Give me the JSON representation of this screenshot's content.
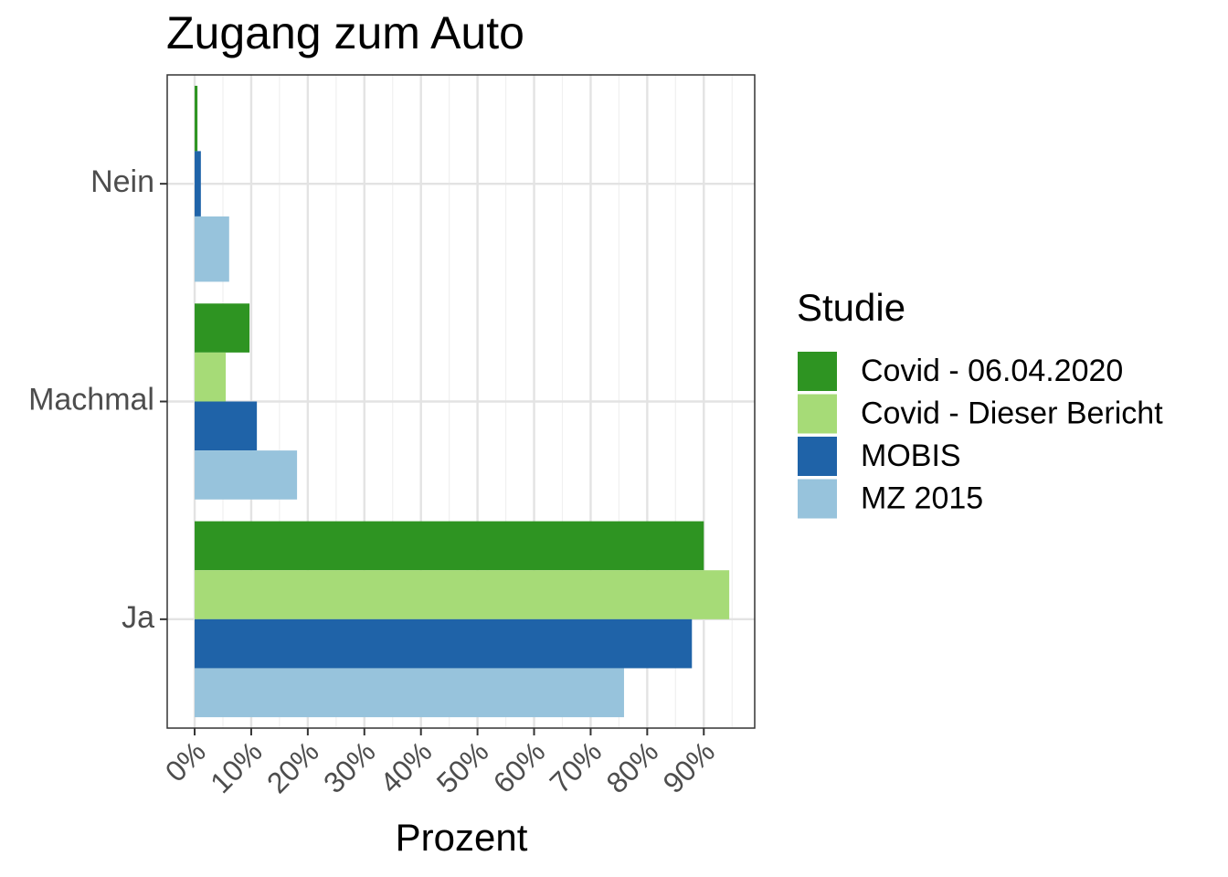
{
  "chart_data": {
    "type": "bar",
    "orientation": "horizontal",
    "title": "Zugang zum Auto",
    "x_label": "Prozent",
    "legend_title": "Studie",
    "legend_position": "right",
    "categories": [
      "Nein",
      "Machmal",
      "Ja"
    ],
    "series": [
      {
        "name": "Covid - 06.04.2020",
        "color": "#2e9422",
        "values": [
          0.5,
          9.7,
          90.0
        ]
      },
      {
        "name": "Covid - Dieser Bericht",
        "color": "#a6db77",
        "values": [
          null,
          5.5,
          94.5
        ]
      },
      {
        "name": "MOBIS",
        "color": "#1f63a8",
        "values": [
          1.1,
          11.0,
          87.9
        ]
      },
      {
        "name": "MZ 2015",
        "color": "#97c3dc",
        "values": [
          6.1,
          18.1,
          75.9
        ]
      }
    ],
    "xlim": [
      -4.85,
      99.0
    ],
    "xticks": [
      {
        "value": 0,
        "label": "0%"
      },
      {
        "value": 10,
        "label": "10%"
      },
      {
        "value": 20,
        "label": "20%"
      },
      {
        "value": 30,
        "label": "30%"
      },
      {
        "value": 40,
        "label": "40%"
      },
      {
        "value": 50,
        "label": "50%"
      },
      {
        "value": 60,
        "label": "60%"
      },
      {
        "value": 70,
        "label": "70%"
      },
      {
        "value": 80,
        "label": "80%"
      },
      {
        "value": 90,
        "label": "90%"
      }
    ],
    "grid": true
  }
}
